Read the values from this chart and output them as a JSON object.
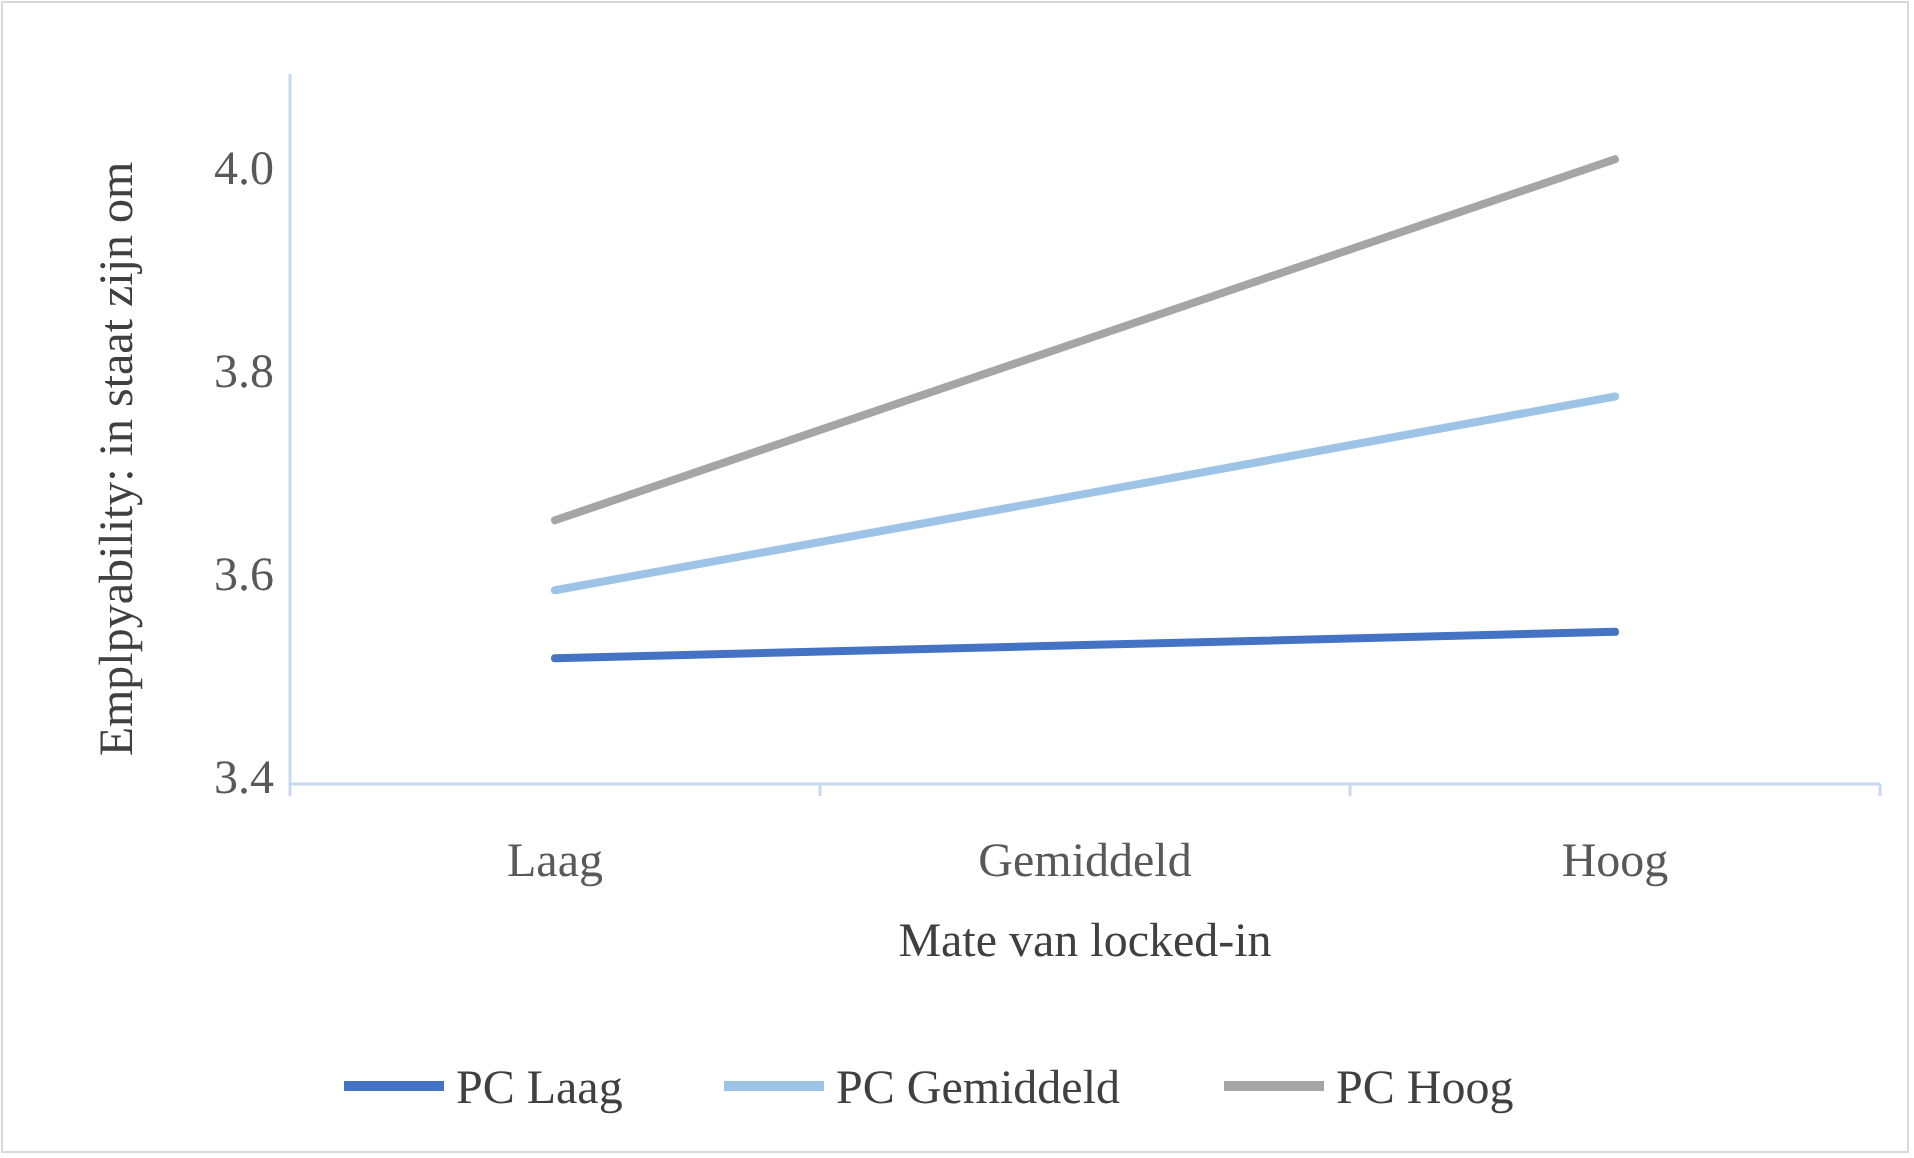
{
  "chart_data": {
    "type": "line",
    "xlabel": "Mate van locked-in",
    "ylabel": "Emplpyability: in staat zijn om",
    "categories": [
      "Laag",
      "Gemiddeld",
      "Hoog"
    ],
    "series": [
      {
        "name": "PC Laag",
        "color": "#4472c4",
        "values": [
          3.524,
          3.537,
          3.55
        ]
      },
      {
        "name": "PC Gemiddeld",
        "color": "#9dc3e6",
        "values": [
          3.591,
          3.686,
          3.782
        ]
      },
      {
        "name": "PC Hoog",
        "color": "#a5a5a5",
        "values": [
          3.66,
          3.838,
          4.016
        ]
      }
    ],
    "ylim": [
      3.4,
      4.1
    ],
    "yticks": [
      {
        "value": 3.4,
        "label": "3.4"
      },
      {
        "value": 3.6,
        "label": "3.6"
      },
      {
        "value": 3.8,
        "label": "3.8"
      },
      {
        "value": 4,
        "label": "4.0"
      }
    ],
    "grid": false,
    "legend": "bottom",
    "marker": "none",
    "line_style": "solid"
  }
}
